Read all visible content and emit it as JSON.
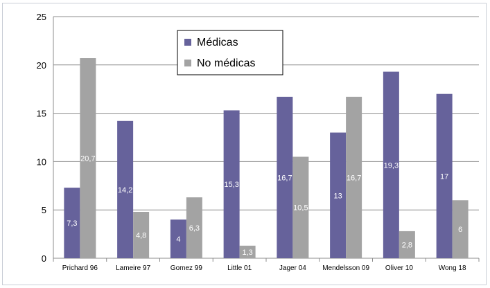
{
  "chart_data": {
    "type": "bar",
    "categories": [
      "Prichard 96",
      "Lameire 97",
      "Gomez 99",
      "Little 01",
      "Jager 04",
      "Mendelsson 09",
      "Oliver 10",
      "Wong 18"
    ],
    "series": [
      {
        "name": "Médicas",
        "color": "#66629b",
        "values": [
          7.3,
          14.2,
          4,
          15.3,
          16.7,
          13,
          19.3,
          17
        ],
        "labels": [
          "7,3",
          "14,2",
          "4",
          "15,3",
          "16,7",
          "13",
          "19,3",
          "17"
        ]
      },
      {
        "name": "No médicas",
        "color": "#a3a3a3",
        "values": [
          20.7,
          4.8,
          6.3,
          1.3,
          10.5,
          16.7,
          2.8,
          6
        ],
        "labels": [
          "20,7",
          "4,8",
          "6,3",
          "1,3",
          "10,5",
          "16,7",
          "2,8",
          "6"
        ]
      }
    ],
    "ylim": [
      0,
      25
    ],
    "yticks": [
      0,
      5,
      10,
      15,
      20,
      25
    ],
    "grid": true,
    "legend": "top-center"
  }
}
